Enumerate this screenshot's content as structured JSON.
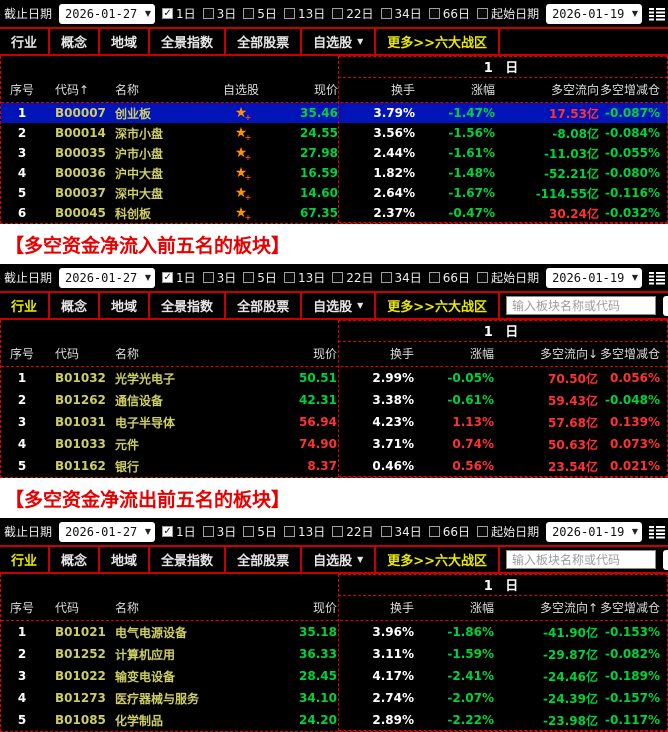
{
  "colors": {
    "up_red": "#ff3232",
    "down_green": "#00d23c",
    "code_yellow": "#cdcd66",
    "accent_red": "#c80000",
    "dashed_red": "#e00000",
    "selected_blue": "#0014b8",
    "caption_red": "#e80000",
    "star_orange": "#ff9000",
    "tab_yellow": "#e8e800",
    "panel_bg": "#000000",
    "page_bg": "#ffffff"
  },
  "toolbar": {
    "end_date_label": "截止日期",
    "end_date_value": "2026-01-27",
    "periods": [
      {
        "label": "1日",
        "checked": true
      },
      {
        "label": "3日",
        "checked": false
      },
      {
        "label": "5日",
        "checked": false
      },
      {
        "label": "13日",
        "checked": false
      },
      {
        "label": "22日",
        "checked": false
      },
      {
        "label": "34日",
        "checked": false
      },
      {
        "label": "66日",
        "checked": false
      }
    ],
    "start_date_label": "起始日期",
    "start_date_checked": false,
    "start_date_value": "2026-01-19"
  },
  "tabs": [
    {
      "label": "行业"
    },
    {
      "label": "概念"
    },
    {
      "label": "地域"
    },
    {
      "label": "全景指数"
    },
    {
      "label": "全部股票"
    },
    {
      "label": "自选股",
      "dropdown": true
    },
    {
      "label": "更多>>六大战区",
      "more": true
    }
  ],
  "search": {
    "placeholder": "输入板块名称或代码"
  },
  "table": {
    "group_header": "1 日",
    "flow_unit": "亿",
    "headers": {
      "index": "序号",
      "name": "名称",
      "fav": "自选股",
      "price": "现价",
      "turnover": "换手",
      "change": "涨幅",
      "position": "多空增减仓"
    }
  },
  "captions": {
    "inflow": "【多空资金净流入前五名的板块】",
    "outflow": "【多空资金净流出前五名的板块】"
  },
  "panels": [
    {
      "code_header": "代码↑",
      "flow_header": "多空流向",
      "show_fav": true,
      "show_search": false,
      "toolbar_sliver": true,
      "active_tab": -1,
      "selected_row": 0,
      "rows": [
        {
          "idx": "1",
          "code": "B00007",
          "name": "创业板",
          "price": "35.46",
          "price_c": "down",
          "turn": "3.79%",
          "chg": "-1.47%",
          "chg_c": "down",
          "flow": "17.53",
          "flow_c": "up",
          "pos": "-0.087%",
          "pos_c": "down"
        },
        {
          "idx": "2",
          "code": "B00014",
          "name": "深市小盘",
          "price": "24.55",
          "price_c": "down",
          "turn": "3.56%",
          "chg": "-1.56%",
          "chg_c": "down",
          "flow": "-8.08",
          "flow_c": "down",
          "pos": "-0.084%",
          "pos_c": "down"
        },
        {
          "idx": "3",
          "code": "B00035",
          "name": "沪市小盘",
          "price": "27.98",
          "price_c": "down",
          "turn": "2.44%",
          "chg": "-1.61%",
          "chg_c": "down",
          "flow": "-11.03",
          "flow_c": "down",
          "pos": "-0.055%",
          "pos_c": "down"
        },
        {
          "idx": "4",
          "code": "B00036",
          "name": "沪中大盘",
          "price": "16.59",
          "price_c": "down",
          "turn": "1.82%",
          "chg": "-1.48%",
          "chg_c": "down",
          "flow": "-52.21",
          "flow_c": "down",
          "pos": "-0.080%",
          "pos_c": "down"
        },
        {
          "idx": "5",
          "code": "B00037",
          "name": "深中大盘",
          "price": "14.60",
          "price_c": "down",
          "turn": "2.64%",
          "chg": "-1.67%",
          "chg_c": "down",
          "flow": "-114.55",
          "flow_c": "down",
          "pos": "-0.116%",
          "pos_c": "down"
        },
        {
          "idx": "6",
          "code": "B00045",
          "name": "科创板",
          "price": "67.35",
          "price_c": "down",
          "turn": "2.37%",
          "chg": "-0.47%",
          "chg_c": "down",
          "flow": "30.24",
          "flow_c": "up",
          "pos": "-0.032%",
          "pos_c": "down"
        }
      ]
    },
    {
      "code_header": "代码",
      "flow_header": "多空流向↓",
      "show_fav": false,
      "show_search": true,
      "toolbar_sliver": false,
      "active_tab": 0,
      "selected_row": -1,
      "rows": [
        {
          "idx": "1",
          "code": "B01032",
          "name": "光学光电子",
          "price": "50.51",
          "price_c": "down",
          "turn": "2.99%",
          "chg": "-0.05%",
          "chg_c": "down",
          "flow": "70.50",
          "flow_c": "up",
          "pos": "0.056%",
          "pos_c": "up"
        },
        {
          "idx": "2",
          "code": "B01262",
          "name": "通信设备",
          "price": "42.31",
          "price_c": "down",
          "turn": "3.38%",
          "chg": "-0.61%",
          "chg_c": "down",
          "flow": "59.43",
          "flow_c": "up",
          "pos": "-0.048%",
          "pos_c": "down"
        },
        {
          "idx": "3",
          "code": "B01031",
          "name": "电子半导体",
          "price": "56.94",
          "price_c": "up",
          "turn": "4.23%",
          "chg": "1.13%",
          "chg_c": "up",
          "flow": "57.68",
          "flow_c": "up",
          "pos": "0.139%",
          "pos_c": "up"
        },
        {
          "idx": "4",
          "code": "B01033",
          "name": "元件",
          "price": "74.90",
          "price_c": "up",
          "turn": "3.71%",
          "chg": "0.74%",
          "chg_c": "up",
          "flow": "50.63",
          "flow_c": "up",
          "pos": "0.073%",
          "pos_c": "up"
        },
        {
          "idx": "5",
          "code": "B01162",
          "name": "银行",
          "price": "8.37",
          "price_c": "up",
          "turn": "0.46%",
          "chg": "0.56%",
          "chg_c": "up",
          "flow": "23.54",
          "flow_c": "up",
          "pos": "0.021%",
          "pos_c": "up"
        }
      ]
    },
    {
      "code_header": "代码",
      "flow_header": "多空流向↑",
      "show_fav": false,
      "show_search": true,
      "toolbar_sliver": false,
      "active_tab": 0,
      "selected_row": -1,
      "rows": [
        {
          "idx": "1",
          "code": "B01021",
          "name": "电气电源设备",
          "price": "35.18",
          "price_c": "down",
          "turn": "3.96%",
          "chg": "-1.86%",
          "chg_c": "down",
          "flow": "-41.90",
          "flow_c": "down",
          "pos": "-0.153%",
          "pos_c": "down"
        },
        {
          "idx": "2",
          "code": "B01252",
          "name": "计算机应用",
          "price": "36.33",
          "price_c": "down",
          "turn": "3.11%",
          "chg": "-1.59%",
          "chg_c": "down",
          "flow": "-29.87",
          "flow_c": "down",
          "pos": "-0.082%",
          "pos_c": "down"
        },
        {
          "idx": "3",
          "code": "B01022",
          "name": "输变电设备",
          "price": "28.45",
          "price_c": "down",
          "turn": "4.17%",
          "chg": "-2.41%",
          "chg_c": "down",
          "flow": "-24.46",
          "flow_c": "down",
          "pos": "-0.189%",
          "pos_c": "down"
        },
        {
          "idx": "4",
          "code": "B01273",
          "name": "医疗器械与服务",
          "price": "34.10",
          "price_c": "down",
          "turn": "2.74%",
          "chg": "-2.07%",
          "chg_c": "down",
          "flow": "-24.39",
          "flow_c": "down",
          "pos": "-0.157%",
          "pos_c": "down"
        },
        {
          "idx": "5",
          "code": "B01085",
          "name": "化学制品",
          "price": "24.20",
          "price_c": "down",
          "turn": "2.89%",
          "chg": "-2.22%",
          "chg_c": "down",
          "flow": "-23.98",
          "flow_c": "down",
          "pos": "-0.117%",
          "pos_c": "down"
        }
      ]
    }
  ]
}
